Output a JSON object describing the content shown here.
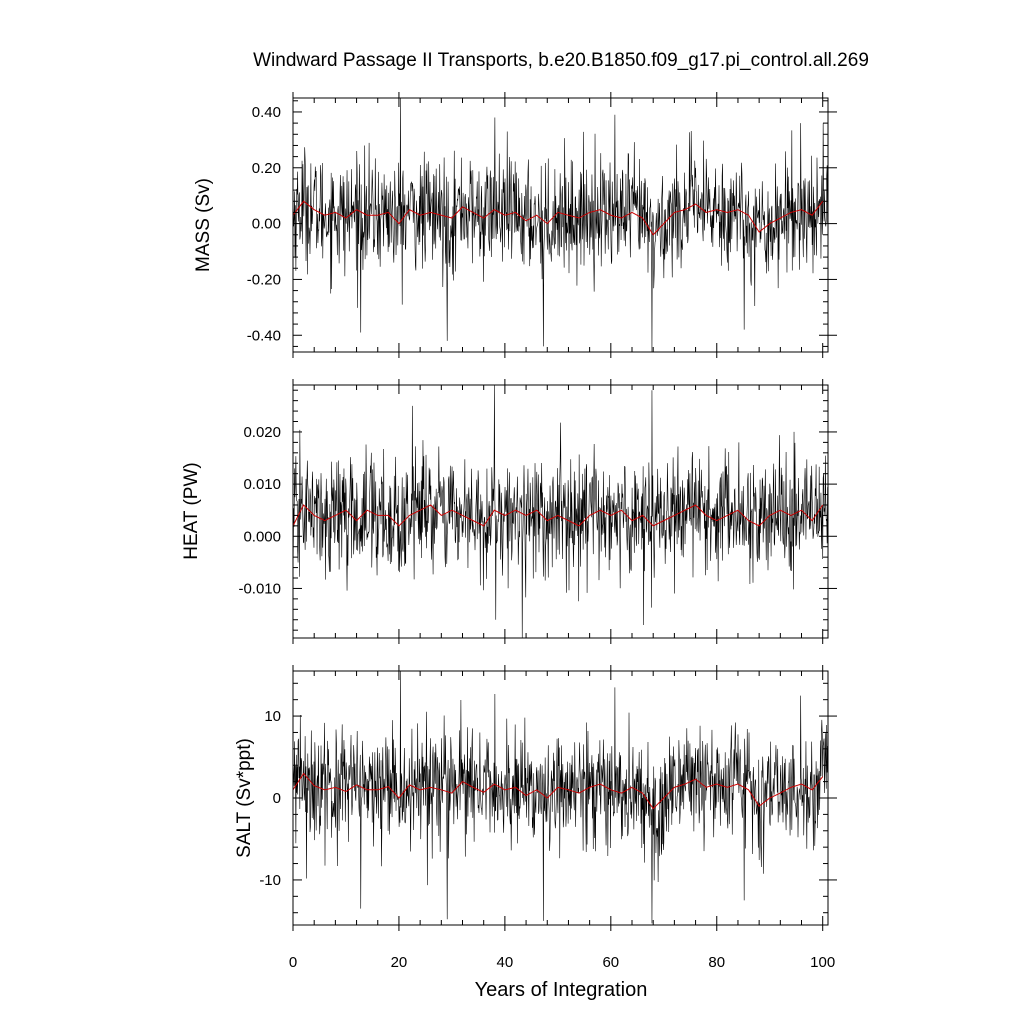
{
  "title": "Windward Passage II Transports, b.e20.B1850.f09_g17.pi_control.all.269",
  "xlabel": "Years of Integration",
  "colors": {
    "raw_series": "#000000",
    "smoothed_series": "#cc0000",
    "frame": "#000000",
    "background": "#ffffff"
  },
  "chart_data": [
    {
      "type": "line",
      "ylabel": "MASS (Sv)",
      "xlim": [
        0,
        101
      ],
      "ylim": [
        -0.46,
        0.45
      ],
      "x_ticks": [
        0,
        20,
        40,
        60,
        80,
        100
      ],
      "y_ticks": [
        -0.4,
        -0.2,
        0.0,
        0.2,
        0.4
      ],
      "y_tick_labels": [
        "-0.40",
        "-0.20",
        "0.00",
        "0.20",
        "0.40"
      ],
      "grid": false,
      "legend": "none",
      "series": [
        {
          "role": "monthly",
          "x_start": 0.0417,
          "x_step": 0.0833,
          "mean": 0.02,
          "amplitude": 0.1,
          "min": -0.46,
          "max": 0.45,
          "spikes": [
            [
              20.3,
              0.45
            ],
            [
              29.1,
              -0.42
            ],
            [
              38.1,
              0.38
            ],
            [
              47.3,
              -0.44
            ],
            [
              60.8,
              0.39
            ],
            [
              67.8,
              -0.46
            ],
            [
              85.2,
              -0.38
            ],
            [
              95.8,
              0.36
            ],
            [
              12.8,
              -0.39
            ]
          ]
        },
        {
          "role": "smoothed",
          "x": [
            0,
            2,
            4,
            6,
            8,
            10,
            12,
            14,
            16,
            18,
            20,
            22,
            24,
            26,
            28,
            30,
            32,
            34,
            36,
            38,
            40,
            42,
            44,
            46,
            48,
            50,
            52,
            54,
            56,
            58,
            60,
            62,
            64,
            66,
            68,
            70,
            72,
            74,
            76,
            78,
            80,
            82,
            84,
            86,
            88,
            90,
            92,
            94,
            96,
            98,
            100
          ],
          "values": [
            0.03,
            0.08,
            0.05,
            0.03,
            0.04,
            0.02,
            0.05,
            0.03,
            0.03,
            0.04,
            0.0,
            0.05,
            0.03,
            0.04,
            0.03,
            0.02,
            0.06,
            0.04,
            0.02,
            0.05,
            0.03,
            0.04,
            0.01,
            0.03,
            0.0,
            0.04,
            0.03,
            0.02,
            0.04,
            0.05,
            0.03,
            0.02,
            0.04,
            0.02,
            -0.04,
            0.0,
            0.04,
            0.05,
            0.07,
            0.04,
            0.05,
            0.04,
            0.05,
            0.03,
            -0.03,
            0.0,
            0.02,
            0.04,
            0.05,
            0.03,
            0.08
          ]
        }
      ]
    },
    {
      "type": "line",
      "ylabel": "HEAT (PW)",
      "xlim": [
        0,
        101
      ],
      "ylim": [
        -0.0195,
        0.029
      ],
      "x_ticks": [
        0,
        20,
        40,
        60,
        80,
        100
      ],
      "y_ticks": [
        -0.01,
        0.0,
        0.01,
        0.02
      ],
      "y_tick_labels": [
        "-0.010",
        "0.000",
        "0.010",
        "0.020"
      ],
      "grid": false,
      "legend": "none",
      "series": [
        {
          "role": "monthly",
          "x_start": 0.0417,
          "x_step": 0.0833,
          "mean": 0.0035,
          "amplitude": 0.0055,
          "min": -0.0195,
          "max": 0.029,
          "spikes": [
            [
              22.5,
              0.025
            ],
            [
              38.0,
              0.029
            ],
            [
              38.3,
              -0.016
            ],
            [
              43.3,
              -0.0195
            ],
            [
              67.8,
              0.028
            ],
            [
              66.2,
              -0.017
            ],
            [
              84.2,
              0.018
            ],
            [
              14.8,
              0.016
            ]
          ]
        },
        {
          "role": "smoothed",
          "x": [
            0,
            2,
            4,
            6,
            8,
            10,
            12,
            14,
            16,
            18,
            20,
            22,
            24,
            26,
            28,
            30,
            32,
            34,
            36,
            38,
            40,
            42,
            44,
            46,
            48,
            50,
            52,
            54,
            56,
            58,
            60,
            62,
            64,
            66,
            68,
            70,
            72,
            74,
            76,
            78,
            80,
            82,
            84,
            86,
            88,
            90,
            92,
            94,
            96,
            98,
            100
          ],
          "values": [
            0.002,
            0.006,
            0.004,
            0.003,
            0.004,
            0.005,
            0.003,
            0.005,
            0.004,
            0.004,
            0.002,
            0.004,
            0.005,
            0.006,
            0.004,
            0.005,
            0.004,
            0.003,
            0.002,
            0.005,
            0.004,
            0.005,
            0.004,
            0.005,
            0.003,
            0.004,
            0.003,
            0.002,
            0.004,
            0.005,
            0.004,
            0.005,
            0.003,
            0.004,
            0.002,
            0.003,
            0.004,
            0.005,
            0.006,
            0.004,
            0.003,
            0.004,
            0.005,
            0.003,
            0.002,
            0.004,
            0.005,
            0.004,
            0.005,
            0.003,
            0.006
          ]
        }
      ]
    },
    {
      "type": "line",
      "ylabel": "SALT (Sv*ppt)",
      "xlim": [
        0,
        101
      ],
      "ylim": [
        -15.5,
        15.5
      ],
      "x_ticks": [
        0,
        20,
        40,
        60,
        80,
        100
      ],
      "x_tick_labels": [
        "0",
        "20",
        "40",
        "60",
        "80",
        "100"
      ],
      "y_ticks": [
        -10,
        0,
        10
      ],
      "y_tick_labels": [
        "-10",
        "0",
        "10"
      ],
      "grid": false,
      "legend": "none",
      "series": [
        {
          "role": "monthly",
          "x_start": 0.0417,
          "x_step": 0.0833,
          "mean": 0.8,
          "amplitude": 3.5,
          "min": -15.5,
          "max": 15.5,
          "spikes": [
            [
              20.3,
              15.5
            ],
            [
              29.1,
              -14.8
            ],
            [
              38.1,
              12.7
            ],
            [
              47.3,
              -15.0
            ],
            [
              60.8,
              13.5
            ],
            [
              67.8,
              -15.3
            ],
            [
              85.2,
              -12.5
            ],
            [
              95.8,
              12.5
            ],
            [
              12.8,
              -13.5
            ]
          ]
        },
        {
          "role": "smoothed",
          "x": [
            0,
            2,
            4,
            6,
            8,
            10,
            12,
            14,
            16,
            18,
            20,
            22,
            24,
            26,
            28,
            30,
            32,
            34,
            36,
            38,
            40,
            42,
            44,
            46,
            48,
            50,
            52,
            54,
            56,
            58,
            60,
            62,
            64,
            66,
            68,
            70,
            72,
            74,
            76,
            78,
            80,
            82,
            84,
            86,
            88,
            90,
            92,
            94,
            96,
            98,
            100
          ],
          "values": [
            1.0,
            3.0,
            1.5,
            1.0,
            1.3,
            0.8,
            1.6,
            1.0,
            1.0,
            1.4,
            0.0,
            1.6,
            1.0,
            1.3,
            1.0,
            0.6,
            2.0,
            1.3,
            0.7,
            1.7,
            1.0,
            1.3,
            0.3,
            1.0,
            0.0,
            1.3,
            1.0,
            0.6,
            1.3,
            1.7,
            1.0,
            0.6,
            1.3,
            0.6,
            -1.3,
            0.0,
            1.3,
            1.7,
            2.3,
            1.3,
            1.7,
            1.3,
            1.7,
            1.0,
            -1.0,
            0.0,
            0.6,
            1.3,
            1.7,
            1.0,
            2.6
          ]
        }
      ]
    }
  ]
}
